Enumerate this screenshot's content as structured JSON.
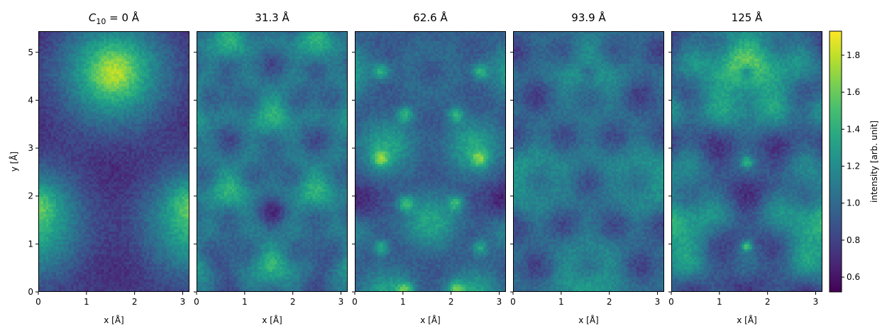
{
  "chart_data": {
    "type": "heatmap",
    "colormap": "viridis",
    "panels": [
      {
        "title_prefix": "C",
        "title_sub": "10",
        "title_suffix": " = 0 Å",
        "title": "C10 = 0 Å",
        "defocus_A": 0
      },
      {
        "title": "31.3 Å",
        "defocus_A": 31.3
      },
      {
        "title": "62.6 Å",
        "defocus_A": 62.6
      },
      {
        "title": "93.9 Å",
        "defocus_A": 93.9
      },
      {
        "title": "125 Å",
        "defocus_A": 125
      }
    ],
    "xlabel": "x [Å]",
    "ylabel": "y [Å]",
    "xlim": [
      0,
      3.14
    ],
    "ylim": [
      0,
      5.44
    ],
    "x_ticks": [
      0,
      1,
      2,
      3
    ],
    "x_tick_labels": [
      "0",
      "1",
      "2",
      "3"
    ],
    "y_ticks": [
      0,
      1,
      2,
      3,
      4,
      5
    ],
    "y_tick_labels": [
      "0",
      "1",
      "2",
      "3",
      "4",
      "5"
    ],
    "colorbar": {
      "label": "intensity [arb. unit]",
      "range": [
        0.52,
        1.93
      ],
      "ticks": [
        0.6,
        0.8,
        1.0,
        1.2,
        1.4,
        1.6,
        1.8
      ],
      "tick_labels": [
        "0.6",
        "0.8",
        "1.0",
        "1.2",
        "1.4",
        "1.6",
        "1.8"
      ]
    }
  }
}
